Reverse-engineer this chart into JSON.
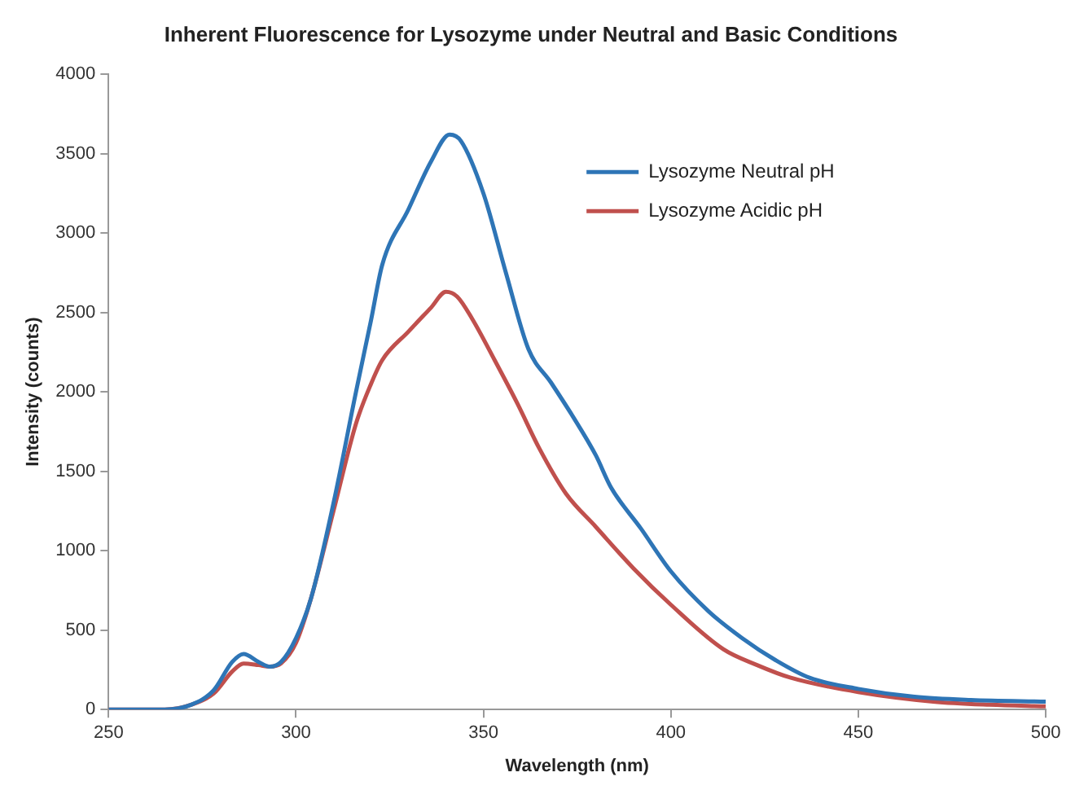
{
  "chart_data": {
    "type": "line",
    "title": "Inherent Fluorescence for Lysozyme under Neutral and Basic Conditions",
    "xlabel": "Wavelength (nm)",
    "ylabel": "Intensity (counts)",
    "xlim": [
      250,
      500
    ],
    "xticks": [
      250,
      300,
      350,
      400,
      450,
      500
    ],
    "ylim": [
      0,
      4000
    ],
    "yticks": [
      0,
      500,
      1000,
      1500,
      2000,
      2500,
      3000,
      3500,
      4000
    ],
    "grid": false,
    "legend": "top right",
    "marker": "none",
    "line_style": "solid",
    "series": [
      {
        "name": "Lysozyme Neutral pH",
        "color": "#2e75b6",
        "x": [
          250,
          265,
          272,
          278,
          283,
          286,
          290,
          293,
          296,
          300,
          304,
          310,
          316,
          320,
          323,
          330,
          336,
          341,
          344,
          350,
          356,
          362,
          368,
          374,
          380,
          384,
          392,
          400,
          410,
          419,
          428,
          437,
          450,
          465,
          480,
          500
        ],
        "values": [
          0,
          0,
          30,
          120,
          300,
          350,
          300,
          270,
          300,
          450,
          700,
          1300,
          2000,
          2450,
          2800,
          3150,
          3450,
          3620,
          3580,
          3250,
          2750,
          2270,
          2060,
          1840,
          1600,
          1400,
          1140,
          870,
          620,
          450,
          310,
          200,
          130,
          80,
          60,
          50
        ]
      },
      {
        "name": "Lysozyme Acidic pH",
        "color": "#c0504d",
        "x": [
          250,
          265,
          272,
          278,
          283,
          286,
          290,
          293,
          296,
          300,
          304,
          310,
          316,
          320,
          323,
          330,
          336,
          340,
          343,
          347,
          353,
          359,
          365,
          372,
          380,
          390,
          400,
          414,
          423,
          432,
          450,
          470,
          485,
          500
        ],
        "values": [
          0,
          0,
          30,
          100,
          240,
          290,
          280,
          270,
          290,
          420,
          700,
          1250,
          1800,
          2050,
          2200,
          2380,
          2530,
          2630,
          2600,
          2460,
          2200,
          1930,
          1640,
          1360,
          1150,
          890,
          660,
          380,
          280,
          200,
          110,
          50,
          30,
          20
        ]
      }
    ]
  }
}
